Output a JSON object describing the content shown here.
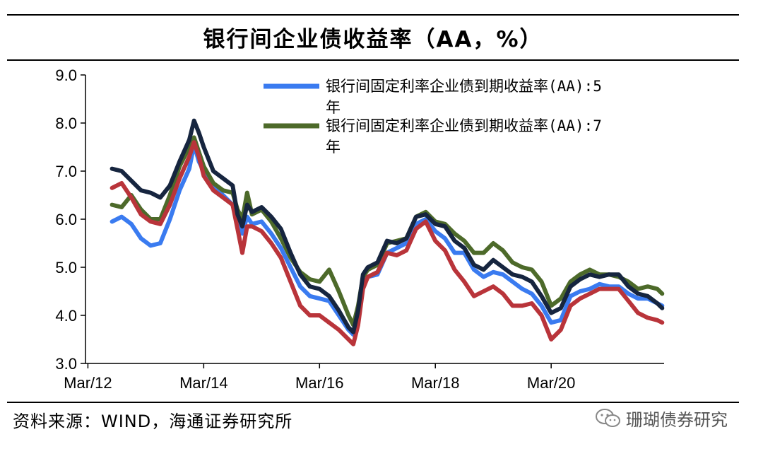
{
  "title": "银行间企业债收益率（AA，%）",
  "source": "资料来源：WIND，海通证券研究所",
  "watermark": "珊瑚债券研究",
  "watermark_icon": "wechat-icon",
  "chart_data": {
    "type": "line",
    "title": "银行间企业债收益率（AA，%）",
    "xlabel": "",
    "ylabel": "",
    "ylim": [
      3.0,
      9.0
    ],
    "yticks": [
      "9.0",
      "8.0",
      "7.0",
      "6.0",
      "5.0",
      "4.0",
      "3.0"
    ],
    "xticks": [
      "Mar/12",
      "Mar/14",
      "Mar/16",
      "Mar/18",
      "Mar/20"
    ],
    "xrange": [
      "2012-03",
      "2022-02"
    ],
    "grid": false,
    "legend_position": "top-right",
    "series": [
      {
        "name": "银行间固定利率企业债到期收益率(AA):5年",
        "color": "#3a7bf0",
        "in_legend": true,
        "points": [
          [
            "2012-08",
            5.95
          ],
          [
            "2012-10",
            6.05
          ],
          [
            "2012-12",
            5.9
          ],
          [
            "2013-02",
            5.6
          ],
          [
            "2013-04",
            5.45
          ],
          [
            "2013-06",
            5.5
          ],
          [
            "2013-08",
            6.0
          ],
          [
            "2013-10",
            6.6
          ],
          [
            "2013-12",
            7.05
          ],
          [
            "2014-01",
            7.55
          ],
          [
            "2014-02",
            7.2
          ],
          [
            "2014-03",
            7.0
          ],
          [
            "2014-05",
            6.7
          ],
          [
            "2014-07",
            6.5
          ],
          [
            "2014-09",
            6.3
          ],
          [
            "2014-10",
            5.9
          ],
          [
            "2014-11",
            5.7
          ],
          [
            "2014-12",
            6.05
          ],
          [
            "2015-01",
            5.9
          ],
          [
            "2015-03",
            5.95
          ],
          [
            "2015-05",
            5.7
          ],
          [
            "2015-07",
            5.4
          ],
          [
            "2015-09",
            5.0
          ],
          [
            "2015-11",
            4.6
          ],
          [
            "2016-01",
            4.4
          ],
          [
            "2016-03",
            4.35
          ],
          [
            "2016-05",
            4.3
          ],
          [
            "2016-07",
            4.0
          ],
          [
            "2016-09",
            3.7
          ],
          [
            "2016-10",
            3.6
          ],
          [
            "2016-11",
            4.0
          ],
          [
            "2016-12",
            4.65
          ],
          [
            "2017-01",
            4.8
          ],
          [
            "2017-03",
            4.85
          ],
          [
            "2017-05",
            5.3
          ],
          [
            "2017-07",
            5.4
          ],
          [
            "2017-09",
            5.5
          ],
          [
            "2017-11",
            5.9
          ],
          [
            "2018-01",
            6.0
          ],
          [
            "2018-03",
            5.75
          ],
          [
            "2018-05",
            5.6
          ],
          [
            "2018-07",
            5.3
          ],
          [
            "2018-09",
            5.3
          ],
          [
            "2018-11",
            4.95
          ],
          [
            "2019-01",
            4.8
          ],
          [
            "2019-03",
            4.9
          ],
          [
            "2019-05",
            4.85
          ],
          [
            "2019-07",
            4.7
          ],
          [
            "2019-09",
            4.55
          ],
          [
            "2019-11",
            4.45
          ],
          [
            "2020-01",
            4.2
          ],
          [
            "2020-03",
            3.85
          ],
          [
            "2020-05",
            3.9
          ],
          [
            "2020-07",
            4.4
          ],
          [
            "2020-09",
            4.5
          ],
          [
            "2020-11",
            4.55
          ],
          [
            "2021-01",
            4.65
          ],
          [
            "2021-03",
            4.6
          ],
          [
            "2021-05",
            4.6
          ],
          [
            "2021-07",
            4.45
          ],
          [
            "2021-09",
            4.35
          ],
          [
            "2021-11",
            4.35
          ],
          [
            "2022-01",
            4.25
          ],
          [
            "2022-02",
            4.2
          ]
        ]
      },
      {
        "name": "银行间固定利率企业债到期收益率(AA):7年",
        "color": "#4d6a2a",
        "in_legend": true,
        "points": [
          [
            "2012-08",
            6.3
          ],
          [
            "2012-10",
            6.25
          ],
          [
            "2012-12",
            6.5
          ],
          [
            "2013-02",
            6.2
          ],
          [
            "2013-04",
            6.0
          ],
          [
            "2013-06",
            6.0
          ],
          [
            "2013-08",
            6.5
          ],
          [
            "2013-10",
            7.1
          ],
          [
            "2013-12",
            7.5
          ],
          [
            "2014-01",
            7.7
          ],
          [
            "2014-02",
            7.4
          ],
          [
            "2014-03",
            7.1
          ],
          [
            "2014-05",
            6.75
          ],
          [
            "2014-07",
            6.6
          ],
          [
            "2014-09",
            6.55
          ],
          [
            "2014-10",
            6.2
          ],
          [
            "2014-11",
            6.0
          ],
          [
            "2014-12",
            6.55
          ],
          [
            "2015-01",
            6.1
          ],
          [
            "2015-03",
            6.2
          ],
          [
            "2015-05",
            5.95
          ],
          [
            "2015-07",
            5.6
          ],
          [
            "2015-09",
            5.2
          ],
          [
            "2015-11",
            4.9
          ],
          [
            "2016-01",
            4.75
          ],
          [
            "2016-03",
            4.7
          ],
          [
            "2016-05",
            4.95
          ],
          [
            "2016-07",
            4.5
          ],
          [
            "2016-09",
            4.0
          ],
          [
            "2016-10",
            3.8
          ],
          [
            "2016-11",
            4.2
          ],
          [
            "2016-12",
            4.8
          ],
          [
            "2017-01",
            4.95
          ],
          [
            "2017-03",
            5.05
          ],
          [
            "2017-05",
            5.5
          ],
          [
            "2017-07",
            5.55
          ],
          [
            "2017-09",
            5.6
          ],
          [
            "2017-11",
            6.05
          ],
          [
            "2018-01",
            6.15
          ],
          [
            "2018-03",
            5.95
          ],
          [
            "2018-05",
            5.9
          ],
          [
            "2018-07",
            5.7
          ],
          [
            "2018-09",
            5.55
          ],
          [
            "2018-11",
            5.3
          ],
          [
            "2019-01",
            5.3
          ],
          [
            "2019-03",
            5.5
          ],
          [
            "2019-05",
            5.35
          ],
          [
            "2019-07",
            5.1
          ],
          [
            "2019-09",
            5.0
          ],
          [
            "2019-11",
            4.95
          ],
          [
            "2020-01",
            4.7
          ],
          [
            "2020-03",
            4.2
          ],
          [
            "2020-05",
            4.35
          ],
          [
            "2020-07",
            4.7
          ],
          [
            "2020-09",
            4.85
          ],
          [
            "2020-11",
            4.95
          ],
          [
            "2021-01",
            4.85
          ],
          [
            "2021-03",
            4.85
          ],
          [
            "2021-05",
            4.8
          ],
          [
            "2021-07",
            4.7
          ],
          [
            "2021-09",
            4.55
          ],
          [
            "2021-11",
            4.6
          ],
          [
            "2022-01",
            4.55
          ],
          [
            "2022-02",
            4.45
          ]
        ]
      },
      {
        "name": "",
        "color": "#b9343a",
        "in_legend": false,
        "points": [
          [
            "2012-08",
            6.65
          ],
          [
            "2012-10",
            6.75
          ],
          [
            "2012-12",
            6.45
          ],
          [
            "2013-02",
            6.1
          ],
          [
            "2013-04",
            5.95
          ],
          [
            "2013-06",
            5.9
          ],
          [
            "2013-08",
            6.3
          ],
          [
            "2013-10",
            6.85
          ],
          [
            "2013-12",
            7.3
          ],
          [
            "2014-01",
            7.6
          ],
          [
            "2014-02",
            7.3
          ],
          [
            "2014-03",
            6.9
          ],
          [
            "2014-05",
            6.6
          ],
          [
            "2014-07",
            6.45
          ],
          [
            "2014-09",
            6.3
          ],
          [
            "2014-10",
            5.8
          ],
          [
            "2014-11",
            5.3
          ],
          [
            "2014-12",
            5.85
          ],
          [
            "2015-01",
            5.85
          ],
          [
            "2015-03",
            5.75
          ],
          [
            "2015-05",
            5.5
          ],
          [
            "2015-07",
            5.2
          ],
          [
            "2015-09",
            4.7
          ],
          [
            "2015-11",
            4.2
          ],
          [
            "2016-01",
            4.0
          ],
          [
            "2016-03",
            4.0
          ],
          [
            "2016-05",
            3.85
          ],
          [
            "2016-07",
            3.7
          ],
          [
            "2016-09",
            3.5
          ],
          [
            "2016-10",
            3.4
          ],
          [
            "2016-11",
            3.8
          ],
          [
            "2016-12",
            4.55
          ],
          [
            "2017-01",
            4.8
          ],
          [
            "2017-03",
            4.9
          ],
          [
            "2017-05",
            5.3
          ],
          [
            "2017-07",
            5.25
          ],
          [
            "2017-09",
            5.35
          ],
          [
            "2017-11",
            5.8
          ],
          [
            "2018-01",
            5.95
          ],
          [
            "2018-03",
            5.55
          ],
          [
            "2018-05",
            5.35
          ],
          [
            "2018-07",
            4.95
          ],
          [
            "2018-09",
            4.7
          ],
          [
            "2018-11",
            4.4
          ],
          [
            "2019-01",
            4.5
          ],
          [
            "2019-03",
            4.6
          ],
          [
            "2019-05",
            4.45
          ],
          [
            "2019-07",
            4.2
          ],
          [
            "2019-09",
            4.2
          ],
          [
            "2019-11",
            4.25
          ],
          [
            "2020-01",
            4.0
          ],
          [
            "2020-03",
            3.5
          ],
          [
            "2020-05",
            3.7
          ],
          [
            "2020-07",
            4.2
          ],
          [
            "2020-09",
            4.35
          ],
          [
            "2020-11",
            4.45
          ],
          [
            "2021-01",
            4.55
          ],
          [
            "2021-03",
            4.55
          ],
          [
            "2021-05",
            4.55
          ],
          [
            "2021-07",
            4.3
          ],
          [
            "2021-09",
            4.05
          ],
          [
            "2021-11",
            3.95
          ],
          [
            "2022-01",
            3.9
          ],
          [
            "2022-02",
            3.85
          ]
        ]
      },
      {
        "name": "",
        "color": "#16253f",
        "in_legend": false,
        "points": [
          [
            "2012-08",
            7.05
          ],
          [
            "2012-10",
            7.0
          ],
          [
            "2012-12",
            6.8
          ],
          [
            "2013-02",
            6.6
          ],
          [
            "2013-04",
            6.55
          ],
          [
            "2013-06",
            6.45
          ],
          [
            "2013-08",
            6.7
          ],
          [
            "2013-10",
            7.2
          ],
          [
            "2013-12",
            7.65
          ],
          [
            "2014-01",
            8.05
          ],
          [
            "2014-02",
            7.8
          ],
          [
            "2014-03",
            7.5
          ],
          [
            "2014-05",
            7.0
          ],
          [
            "2014-07",
            6.85
          ],
          [
            "2014-09",
            6.7
          ],
          [
            "2014-10",
            6.1
          ],
          [
            "2014-11",
            5.85
          ],
          [
            "2014-12",
            6.3
          ],
          [
            "2015-01",
            6.15
          ],
          [
            "2015-03",
            6.25
          ],
          [
            "2015-05",
            6.05
          ],
          [
            "2015-07",
            5.8
          ],
          [
            "2015-09",
            5.3
          ],
          [
            "2015-11",
            4.85
          ],
          [
            "2016-01",
            4.6
          ],
          [
            "2016-03",
            4.55
          ],
          [
            "2016-05",
            4.4
          ],
          [
            "2016-07",
            4.1
          ],
          [
            "2016-09",
            3.75
          ],
          [
            "2016-10",
            3.65
          ],
          [
            "2016-11",
            4.1
          ],
          [
            "2016-12",
            4.85
          ],
          [
            "2017-01",
            5.0
          ],
          [
            "2017-03",
            5.1
          ],
          [
            "2017-05",
            5.55
          ],
          [
            "2017-07",
            5.5
          ],
          [
            "2017-09",
            5.6
          ],
          [
            "2017-11",
            6.05
          ],
          [
            "2018-01",
            6.1
          ],
          [
            "2018-03",
            5.9
          ],
          [
            "2018-05",
            5.85
          ],
          [
            "2018-07",
            5.55
          ],
          [
            "2018-09",
            5.4
          ],
          [
            "2018-11",
            5.05
          ],
          [
            "2019-01",
            4.95
          ],
          [
            "2019-03",
            5.15
          ],
          [
            "2019-05",
            5.0
          ],
          [
            "2019-07",
            4.85
          ],
          [
            "2019-09",
            4.8
          ],
          [
            "2019-11",
            4.7
          ],
          [
            "2020-01",
            4.4
          ],
          [
            "2020-03",
            4.05
          ],
          [
            "2020-05",
            4.15
          ],
          [
            "2020-07",
            4.6
          ],
          [
            "2020-09",
            4.75
          ],
          [
            "2020-11",
            4.85
          ],
          [
            "2021-01",
            4.8
          ],
          [
            "2021-03",
            4.85
          ],
          [
            "2021-05",
            4.85
          ],
          [
            "2021-07",
            4.6
          ],
          [
            "2021-09",
            4.45
          ],
          [
            "2021-11",
            4.4
          ],
          [
            "2022-01",
            4.25
          ],
          [
            "2022-02",
            4.15
          ]
        ]
      }
    ]
  }
}
